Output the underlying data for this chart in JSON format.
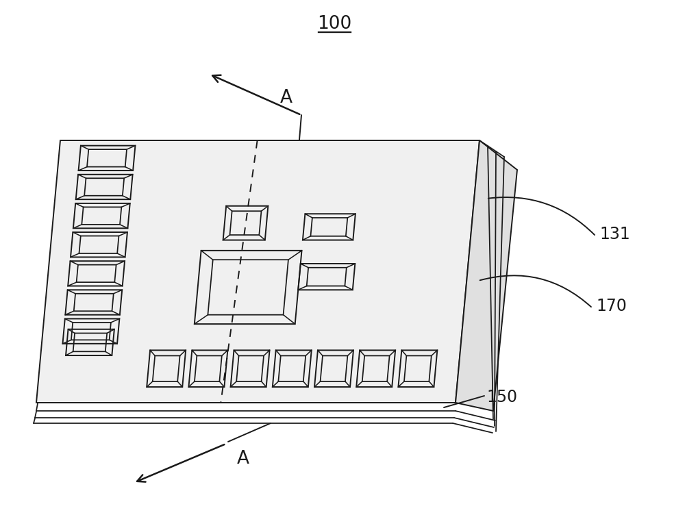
{
  "bg_color": "#ffffff",
  "line_color": "#1a1a1a",
  "line_width": 1.4,
  "fig_width": 10.0,
  "fig_height": 7.71,
  "label_100": "100",
  "label_131": "131",
  "label_170": "170",
  "label_150": "150",
  "label_A": "A",
  "chip_top_color": "#f0f0f0",
  "chip_right_color": "#e0e0e0",
  "chip_bottom_color": "#d5d5d5"
}
